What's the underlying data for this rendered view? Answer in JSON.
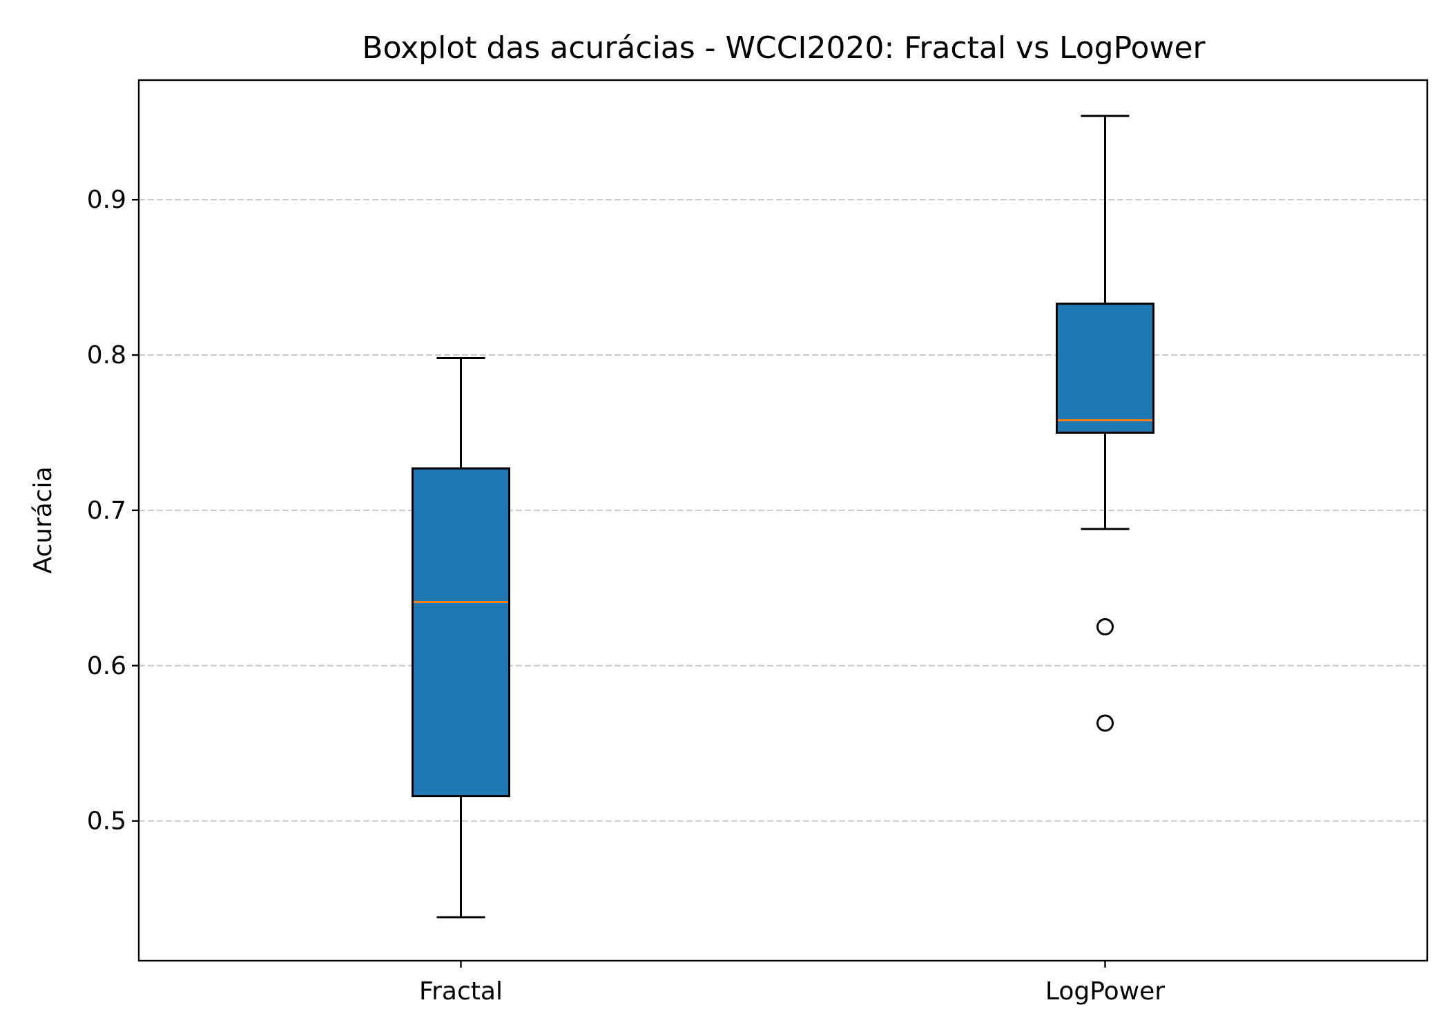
{
  "chart_data": {
    "type": "boxplot",
    "title": "Boxplot das acurácias - WCCI2020: Fractal vs LogPower",
    "xlabel": "",
    "ylabel": "Acurácia",
    "categories": [
      "Fractal",
      "LogPower"
    ],
    "ylim": [
      0.41,
      0.977
    ],
    "yticks": [
      0.5,
      0.6,
      0.7,
      0.8,
      0.9
    ],
    "ytick_labels": [
      "0.5",
      "0.6",
      "0.7",
      "0.8",
      "0.9"
    ],
    "grid": {
      "y": true,
      "x": false,
      "style": "dashed"
    },
    "boxes": [
      {
        "label": "Fractal",
        "whisker_low": 0.438,
        "q1": 0.516,
        "median": 0.641,
        "q3": 0.727,
        "whisker_high": 0.798,
        "outliers": []
      },
      {
        "label": "LogPower",
        "whisker_low": 0.688,
        "q1": 0.75,
        "median": 0.758,
        "q3": 0.833,
        "whisker_high": 0.954,
        "outliers": [
          0.625,
          0.563
        ]
      }
    ],
    "colors": {
      "box_fill": "#1f77b4",
      "median": "#ff7f0e",
      "edge": "#000000",
      "grid": "#c8c8c8"
    }
  }
}
